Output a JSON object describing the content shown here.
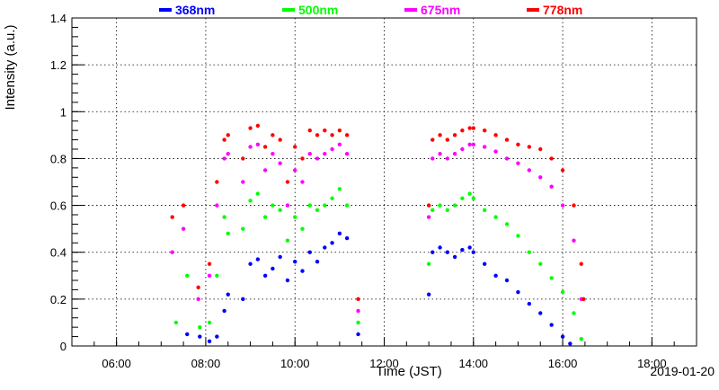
{
  "chart_data": {
    "type": "scatter",
    "title": "",
    "xlabel": "Time (JST)",
    "ylabel": "Intensity (a.u.)",
    "date": "2019-01-20",
    "xlim": [
      "05:00",
      "19:00"
    ],
    "ylim": [
      0,
      1.4
    ],
    "grid": true,
    "legend_position": "top",
    "x_ticks": [
      "06:00",
      "08:00",
      "10:00",
      "12:00",
      "14:00",
      "16:00",
      "18:00"
    ],
    "y_ticks": [
      "0",
      "0.2",
      "0.4",
      "0.6",
      "0.8",
      "1",
      "1.2",
      "1.4"
    ],
    "series": [
      {
        "name": "368nm",
        "color": "#0000ff",
        "points": [
          [
            "07:35",
            0.05
          ],
          [
            "07:52",
            0.04
          ],
          [
            "08:05",
            0.02
          ],
          [
            "08:15",
            0.04
          ],
          [
            "08:25",
            0.15
          ],
          [
            "08:30",
            0.22
          ],
          [
            "08:50",
            0.2
          ],
          [
            "09:00",
            0.35
          ],
          [
            "09:10",
            0.37
          ],
          [
            "09:20",
            0.3
          ],
          [
            "09:30",
            0.33
          ],
          [
            "09:40",
            0.38
          ],
          [
            "09:50",
            0.28
          ],
          [
            "10:00",
            0.36
          ],
          [
            "10:10",
            0.32
          ],
          [
            "10:20",
            0.4
          ],
          [
            "10:30",
            0.36
          ],
          [
            "10:40",
            0.42
          ],
          [
            "10:50",
            0.44
          ],
          [
            "11:00",
            0.48
          ],
          [
            "11:10",
            0.46
          ],
          [
            "11:25",
            0.05
          ],
          [
            "13:00",
            0.22
          ],
          [
            "13:05",
            0.4
          ],
          [
            "13:15",
            0.42
          ],
          [
            "13:25",
            0.4
          ],
          [
            "13:35",
            0.38
          ],
          [
            "13:45",
            0.41
          ],
          [
            "13:55",
            0.42
          ],
          [
            "14:00",
            0.4
          ],
          [
            "14:15",
            0.35
          ],
          [
            "14:30",
            0.3
          ],
          [
            "14:45",
            0.28
          ],
          [
            "15:00",
            0.23
          ],
          [
            "15:15",
            0.18
          ],
          [
            "15:30",
            0.14
          ],
          [
            "15:45",
            0.09
          ],
          [
            "16:00",
            0.04
          ],
          [
            "16:10",
            0.01
          ]
        ]
      },
      {
        "name": "500nm",
        "color": "#00ff00",
        "points": [
          [
            "07:20",
            0.1
          ],
          [
            "07:35",
            0.3
          ],
          [
            "07:52",
            0.08
          ],
          [
            "08:05",
            0.1
          ],
          [
            "08:15",
            0.3
          ],
          [
            "08:25",
            0.55
          ],
          [
            "08:30",
            0.48
          ],
          [
            "08:50",
            0.5
          ],
          [
            "09:00",
            0.62
          ],
          [
            "09:10",
            0.65
          ],
          [
            "09:20",
            0.55
          ],
          [
            "09:30",
            0.6
          ],
          [
            "09:40",
            0.58
          ],
          [
            "09:50",
            0.45
          ],
          [
            "10:00",
            0.55
          ],
          [
            "10:10",
            0.5
          ],
          [
            "10:20",
            0.6
          ],
          [
            "10:30",
            0.58
          ],
          [
            "10:40",
            0.6
          ],
          [
            "10:50",
            0.63
          ],
          [
            "11:00",
            0.67
          ],
          [
            "11:10",
            0.6
          ],
          [
            "11:25",
            0.1
          ],
          [
            "13:00",
            0.35
          ],
          [
            "13:05",
            0.58
          ],
          [
            "13:15",
            0.6
          ],
          [
            "13:25",
            0.58
          ],
          [
            "13:35",
            0.6
          ],
          [
            "13:45",
            0.63
          ],
          [
            "13:55",
            0.65
          ],
          [
            "14:00",
            0.63
          ],
          [
            "14:15",
            0.58
          ],
          [
            "14:30",
            0.55
          ],
          [
            "14:45",
            0.52
          ],
          [
            "15:00",
            0.47
          ],
          [
            "15:15",
            0.4
          ],
          [
            "15:30",
            0.35
          ],
          [
            "15:45",
            0.29
          ],
          [
            "16:00",
            0.23
          ],
          [
            "16:15",
            0.14
          ],
          [
            "16:25",
            0.03
          ]
        ]
      },
      {
        "name": "675nm",
        "color": "#ff00ff",
        "points": [
          [
            "07:15",
            0.4
          ],
          [
            "07:30",
            0.5
          ],
          [
            "07:50",
            0.2
          ],
          [
            "08:05",
            0.3
          ],
          [
            "08:15",
            0.6
          ],
          [
            "08:25",
            0.8
          ],
          [
            "08:30",
            0.82
          ],
          [
            "08:50",
            0.7
          ],
          [
            "09:00",
            0.85
          ],
          [
            "09:10",
            0.86
          ],
          [
            "09:20",
            0.75
          ],
          [
            "09:30",
            0.82
          ],
          [
            "09:40",
            0.78
          ],
          [
            "09:50",
            0.6
          ],
          [
            "10:00",
            0.75
          ],
          [
            "10:10",
            0.7
          ],
          [
            "10:20",
            0.82
          ],
          [
            "10:30",
            0.8
          ],
          [
            "10:40",
            0.82
          ],
          [
            "10:50",
            0.84
          ],
          [
            "11:00",
            0.86
          ],
          [
            "11:10",
            0.82
          ],
          [
            "11:25",
            0.15
          ],
          [
            "13:00",
            0.55
          ],
          [
            "13:05",
            0.8
          ],
          [
            "13:15",
            0.82
          ],
          [
            "13:25",
            0.8
          ],
          [
            "13:35",
            0.82
          ],
          [
            "13:45",
            0.84
          ],
          [
            "13:55",
            0.86
          ],
          [
            "14:00",
            0.86
          ],
          [
            "14:15",
            0.85
          ],
          [
            "14:30",
            0.83
          ],
          [
            "14:45",
            0.8
          ],
          [
            "15:00",
            0.78
          ],
          [
            "15:15",
            0.75
          ],
          [
            "15:30",
            0.72
          ],
          [
            "15:45",
            0.68
          ],
          [
            "16:00",
            0.6
          ],
          [
            "16:15",
            0.45
          ],
          [
            "16:25",
            0.2
          ]
        ]
      },
      {
        "name": "778nm",
        "color": "#ff0000",
        "points": [
          [
            "07:15",
            0.55
          ],
          [
            "07:30",
            0.6
          ],
          [
            "07:50",
            0.25
          ],
          [
            "08:05",
            0.35
          ],
          [
            "08:15",
            0.7
          ],
          [
            "08:25",
            0.88
          ],
          [
            "08:30",
            0.9
          ],
          [
            "08:50",
            0.8
          ],
          [
            "09:00",
            0.93
          ],
          [
            "09:10",
            0.94
          ],
          [
            "09:20",
            0.85
          ],
          [
            "09:30",
            0.9
          ],
          [
            "09:40",
            0.88
          ],
          [
            "09:50",
            0.7
          ],
          [
            "10:00",
            0.85
          ],
          [
            "10:10",
            0.8
          ],
          [
            "10:20",
            0.92
          ],
          [
            "10:30",
            0.9
          ],
          [
            "10:40",
            0.92
          ],
          [
            "10:50",
            0.9
          ],
          [
            "11:00",
            0.92
          ],
          [
            "11:10",
            0.9
          ],
          [
            "11:25",
            0.2
          ],
          [
            "13:00",
            0.6
          ],
          [
            "13:05",
            0.88
          ],
          [
            "13:15",
            0.9
          ],
          [
            "13:25",
            0.88
          ],
          [
            "13:35",
            0.9
          ],
          [
            "13:45",
            0.92
          ],
          [
            "13:55",
            0.93
          ],
          [
            "14:00",
            0.93
          ],
          [
            "14:15",
            0.92
          ],
          [
            "14:30",
            0.9
          ],
          [
            "14:45",
            0.88
          ],
          [
            "15:00",
            0.86
          ],
          [
            "15:15",
            0.85
          ],
          [
            "15:30",
            0.84
          ],
          [
            "15:45",
            0.8
          ],
          [
            "16:00",
            0.75
          ],
          [
            "16:15",
            0.6
          ],
          [
            "16:25",
            0.35
          ],
          [
            "16:28",
            0.2
          ]
        ]
      }
    ]
  }
}
